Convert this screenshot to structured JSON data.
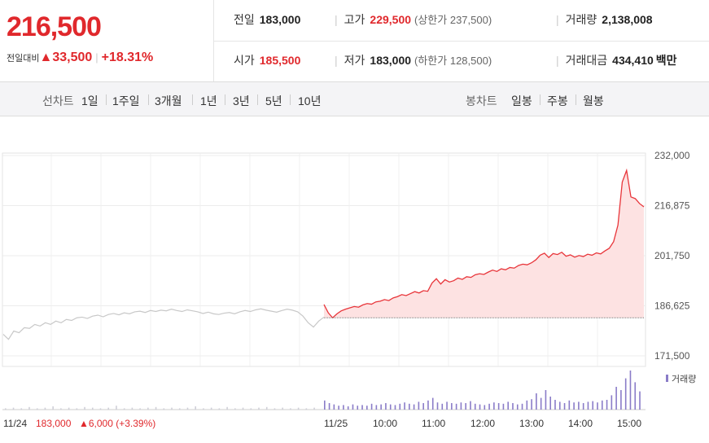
{
  "quote": {
    "price": "216,500",
    "change_label": "전일대비",
    "change_value": "▲33,500",
    "change_rate": "+18.31%"
  },
  "stats": {
    "prev_close_label": "전일",
    "prev_close": "183,000",
    "high_label": "고가",
    "high": "229,500",
    "upper_limit": "(상한가 237,500)",
    "volume_label": "거래량",
    "volume": "2,138,008",
    "open_label": "시가",
    "open": "185,500",
    "low_label": "저가",
    "low": "183,000",
    "lower_limit": "(하한가 128,500)",
    "turnover_label": "거래대금",
    "turnover": "434,410",
    "turnover_unit": "백만"
  },
  "periods": {
    "line_label": "선차트",
    "items": [
      "1일",
      "1주일",
      "3개월",
      "1년",
      "3년",
      "5년",
      "10년"
    ],
    "active": "1일",
    "candle_label": "봉차트",
    "candle_items": [
      "일봉",
      "주봉",
      "월봉"
    ]
  },
  "chart_data": {
    "type": "line",
    "y_ticks": [
      "232,000",
      "216,875",
      "201,750",
      "186,625",
      "171,500"
    ],
    "ylim": [
      171500,
      232000
    ],
    "x_ticks": [
      "11/25",
      "10:00",
      "11:00",
      "12:00",
      "13:00",
      "14:00",
      "15:00"
    ],
    "prev_day_label": "11/24",
    "prev_day_close_text": "183,000",
    "prev_day_change_text": "▲6,000 (+3.39%)",
    "volume_legend": "거래량",
    "prev_close_value": 183000,
    "colors": {
      "today_line": "#e8353a",
      "today_fill": "#fde2e2",
      "prev_line": "#c8c8c8",
      "volume": "#8a7cc8"
    },
    "series": [
      {
        "values": [
          178000,
          176500,
          179000,
          178500,
          180000,
          179800,
          181000,
          180500,
          181500,
          181000,
          182000,
          181500,
          182500,
          182200,
          183000,
          183200,
          182800,
          183500,
          183800,
          183300,
          184000,
          184300,
          183900,
          184500,
          184200,
          184800,
          185000,
          184600,
          185200,
          184900,
          185300,
          185100,
          185600,
          185200,
          184900,
          185400,
          185100,
          184800,
          184300,
          184700,
          184200,
          184000,
          184400,
          184600,
          184200,
          184800,
          185200,
          184900,
          185400,
          185700,
          185300,
          185000,
          184700,
          185200,
          185600,
          185300,
          184800,
          183500,
          181500,
          180200,
          182000,
          183200
        ]
      },
      {
        "values": [
          187000,
          184500,
          183000,
          184200,
          185100,
          185600,
          186000,
          186400,
          186200,
          186900,
          187300,
          187100,
          187800,
          188000,
          188500,
          188200,
          189000,
          189400,
          190000,
          189700,
          190300,
          190900,
          190500,
          191200,
          191000,
          193500,
          194800,
          193200,
          194500,
          193800,
          194200,
          195000,
          194600,
          195400,
          195200,
          196000,
          196300,
          196100,
          196800,
          197400,
          197000,
          197800,
          197500,
          198200,
          198000,
          198800,
          199200,
          199000,
          199600,
          200500,
          201900,
          202500,
          201200,
          202400,
          202100,
          202800,
          201600,
          202000,
          201300,
          201800,
          201500,
          202200,
          201900,
          202600,
          202300,
          203200,
          204000,
          206000,
          211000,
          224000,
          227500,
          219500,
          219000,
          217500,
          216500
        ]
      }
    ],
    "volumes_prev": [
      2,
      3,
      2,
      4,
      2,
      3,
      5,
      2,
      3,
      2,
      4,
      3,
      2,
      3,
      6,
      2,
      3,
      2,
      3,
      4,
      2,
      3,
      2,
      3,
      5,
      2,
      3,
      2,
      4,
      2,
      3,
      2,
      3,
      4,
      2,
      3,
      2,
      3,
      2,
      3
    ],
    "volumes_today": [
      14,
      10,
      8,
      6,
      7,
      5,
      8,
      6,
      7,
      6,
      9,
      7,
      8,
      10,
      8,
      7,
      9,
      11,
      9,
      8,
      12,
      10,
      14,
      18,
      11,
      9,
      12,
      10,
      9,
      11,
      10,
      13,
      9,
      8,
      7,
      9,
      11,
      10,
      9,
      12,
      10,
      8,
      9,
      14,
      16,
      25,
      18,
      30,
      20,
      15,
      12,
      10,
      14,
      11,
      12,
      10,
      12,
      13,
      11,
      14,
      15,
      22,
      35,
      30,
      48,
      60,
      42,
      28
    ]
  }
}
